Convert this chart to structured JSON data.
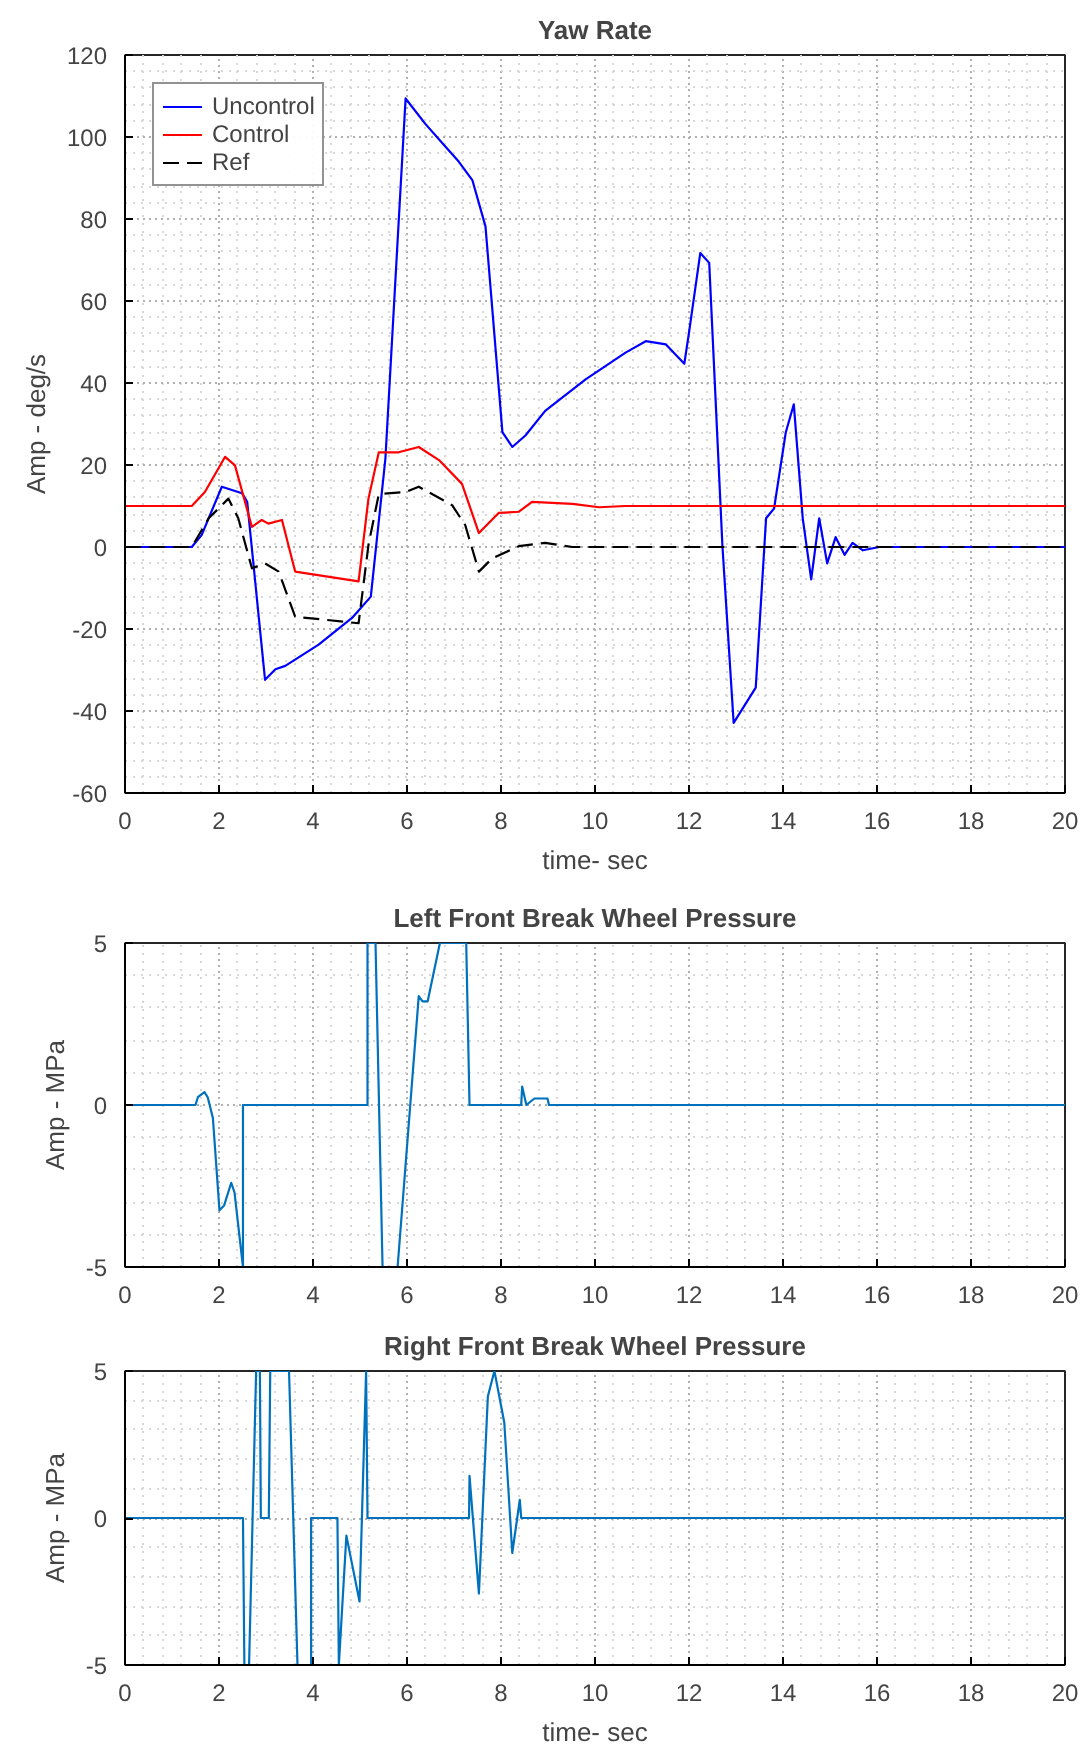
{
  "chart_data": [
    {
      "type": "line",
      "title": "Yaw Rate",
      "xlabel": "time- sec",
      "ylabel": "Amp - deg/s",
      "xlim": [
        0,
        20
      ],
      "ylim": [
        -60,
        120
      ],
      "xticks": [
        0,
        2,
        4,
        6,
        8,
        10,
        12,
        14,
        16,
        18,
        20
      ],
      "yticks": [
        -60,
        -40,
        -20,
        0,
        20,
        40,
        60,
        80,
        100,
        120
      ],
      "grid": true,
      "legend": "top left",
      "series": [
        {
          "name": "Uncontrol",
          "color": "#0000ff",
          "line_style": "solid",
          "x": [
            0,
            1.42,
            1.63,
            2.06,
            2.49,
            2.6,
            2.98,
            3.2,
            3.41,
            4.12,
            4.83,
            5.23,
            5.54,
            5.97,
            6.39,
            6.82,
            7.1,
            7.39,
            7.67,
            8.03,
            8.24,
            8.52,
            8.94,
            9.8,
            10.65,
            11.08,
            11.51,
            11.9,
            12.0,
            12.24,
            12.43,
            12.71,
            12.95,
            13.42,
            13.64,
            13.81,
            14.06,
            14.23,
            14.42,
            14.6,
            14.77,
            14.94,
            15.12,
            15.31,
            15.48,
            15.7,
            16.05,
            20
          ],
          "values": [
            0,
            0,
            2.9,
            14.7,
            13.1,
            11,
            -32.4,
            -29.8,
            -29,
            -23.8,
            -17.3,
            -12.1,
            21.5,
            109.4,
            103.2,
            97.6,
            94,
            89.5,
            78.2,
            28,
            24.4,
            27.2,
            33.2,
            40.9,
            47.4,
            50.2,
            49.4,
            44.7,
            52.3,
            71.7,
            69.3,
            0.5,
            -42.9,
            -34.3,
            7,
            9.4,
            28,
            34.8,
            7,
            -7.9,
            7,
            -4,
            2.4,
            -1.9,
            1,
            -0.8,
            0,
            0
          ]
        },
        {
          "name": "Control",
          "color": "#ff0000",
          "line_style": "solid",
          "x": [
            0,
            1.42,
            1.7,
            2.13,
            2.34,
            2.7,
            2.91,
            3.05,
            3.34,
            3.62,
            4.97,
            5.18,
            5.4,
            5.82,
            6.25,
            6.68,
            7.17,
            7.53,
            7.95,
            8.38,
            8.66,
            9.52,
            10.09,
            10.65,
            20
          ],
          "values": [
            10,
            10,
            13.4,
            22,
            19.9,
            4.9,
            6.6,
            5.7,
            6.6,
            -6,
            -8.4,
            11.8,
            23.1,
            23.1,
            24.4,
            21.2,
            15.4,
            3.4,
            8.3,
            8.6,
            11,
            10.5,
            9.7,
            10,
            10
          ]
        },
        {
          "name": "Ref",
          "color": "#000000",
          "line_style": "dashed",
          "x": [
            0,
            1.42,
            1.78,
            2.2,
            2.41,
            2.7,
            2.98,
            3.27,
            3.62,
            4.97,
            5.18,
            5.4,
            5.97,
            6.25,
            6.96,
            7.24,
            7.53,
            7.81,
            8.38,
            8.94,
            9.52,
            20
          ],
          "values": [
            0,
            0,
            7,
            11.8,
            7,
            -5.2,
            -4,
            -6,
            -17,
            -18.6,
            0.5,
            12.9,
            13.4,
            14.7,
            10.2,
            5.3,
            -6,
            -2.8,
            0.2,
            1,
            0,
            0
          ]
        }
      ]
    },
    {
      "type": "line",
      "title": "Left Front Break Wheel Pressure",
      "ylabel": "Amp - MPa",
      "xlim": [
        0,
        20
      ],
      "ylim": [
        -5,
        5
      ],
      "xticks": [
        0,
        2,
        4,
        6,
        8,
        10,
        12,
        14,
        16,
        18,
        20
      ],
      "yticks": [
        -5,
        0,
        5
      ],
      "grid": true,
      "series": [
        {
          "color": "#0072bd",
          "line_style": "solid",
          "x": [
            0,
            1.5,
            1.55,
            1.69,
            1.76,
            1.87,
            2.01,
            2.11,
            2.26,
            2.33,
            2.51,
            2.51,
            5.16,
            5.16,
            5.33,
            5.48,
            5.8,
            6.25,
            6.33,
            6.44,
            6.7,
            7.26,
            7.33,
            8.43,
            8.45,
            8.54,
            8.71,
            8.99,
            9.02,
            20
          ],
          "values": [
            0,
            0,
            0.24,
            0.4,
            0.24,
            -0.4,
            -3.25,
            -3.1,
            -2.4,
            -2.7,
            -5,
            0,
            0,
            5,
            5,
            -5,
            -5,
            3.36,
            3.2,
            3.2,
            5,
            5,
            0,
            0,
            0.57,
            0,
            0.2,
            0.2,
            0,
            0
          ]
        }
      ]
    },
    {
      "type": "line",
      "title": "Right Front Break Wheel Pressure",
      "xlabel": "time- sec",
      "ylabel": "Amp - MPa",
      "xlim": [
        0,
        20
      ],
      "ylim": [
        -5,
        5
      ],
      "xticks": [
        0,
        2,
        4,
        6,
        8,
        10,
        12,
        14,
        16,
        18,
        20
      ],
      "yticks": [
        -5,
        0,
        5
      ],
      "grid": true,
      "series": [
        {
          "color": "#0072bd",
          "line_style": "solid",
          "x": [
            0,
            2.51,
            2.54,
            2.64,
            2.79,
            2.87,
            2.89,
            3.06,
            3.09,
            3.49,
            3.67,
            3.96,
            3.96,
            4.52,
            4.55,
            4.71,
            4.99,
            5.13,
            5.16,
            7.32,
            7.33,
            7.53,
            7.72,
            7.86,
            8.07,
            8.24,
            8.4,
            8.43,
            20
          ],
          "values": [
            0,
            0,
            -5,
            -5,
            5,
            5,
            0,
            0,
            5,
            5,
            -5,
            -5,
            0,
            0,
            -5,
            -0.6,
            -2.84,
            5,
            0,
            0,
            1.43,
            -2.57,
            4.13,
            5,
            3.25,
            -1.19,
            0.62,
            0,
            0
          ]
        }
      ]
    }
  ]
}
